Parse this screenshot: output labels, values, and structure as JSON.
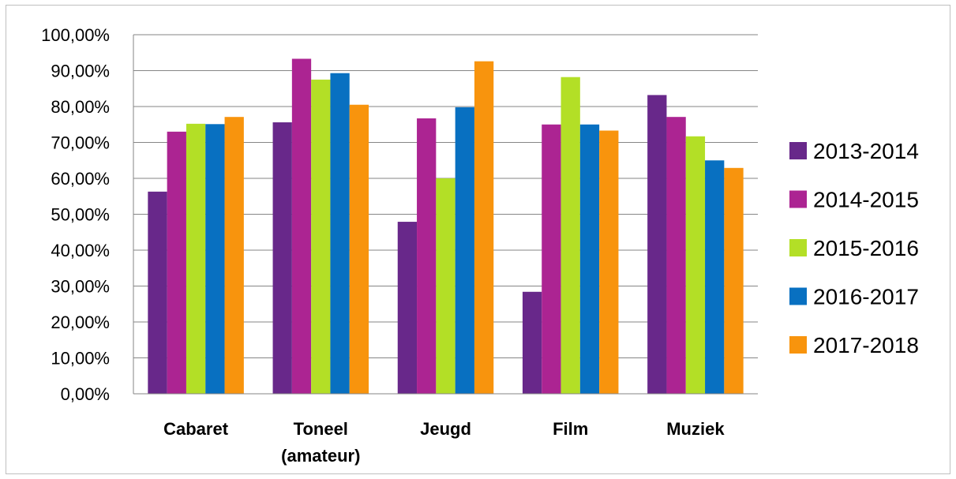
{
  "chart_data": {
    "type": "bar",
    "title": "",
    "xlabel": "",
    "ylabel": "",
    "categories": [
      "Cabaret",
      "Toneel\n(amateur)",
      "Jeugd",
      "Film",
      "Muziek"
    ],
    "series": [
      {
        "name": "2013-2014",
        "color": "#68288a",
        "values": [
          56.3,
          75.6,
          47.9,
          28.4,
          83.2
        ]
      },
      {
        "name": "2014-2015",
        "color": "#ac2492",
        "values": [
          73.0,
          93.3,
          76.7,
          75.0,
          77.1
        ]
      },
      {
        "name": "2015-2016",
        "color": "#b3df26",
        "values": [
          75.2,
          87.5,
          60.0,
          88.2,
          71.7
        ]
      },
      {
        "name": "2016-2017",
        "color": "#0870c1",
        "values": [
          75.1,
          89.3,
          79.8,
          75.0,
          65.0
        ]
      },
      {
        "name": "2017-2018",
        "color": "#f8940d",
        "values": [
          77.1,
          80.5,
          92.6,
          73.3,
          62.9
        ]
      }
    ],
    "ylim": [
      0,
      100
    ],
    "yticks": [
      "0,00%",
      "10,00%",
      "20,00%",
      "30,00%",
      "40,00%",
      "50,00%",
      "60,00%",
      "70,00%",
      "80,00%",
      "90,00%",
      "100,00%"
    ],
    "grid": true,
    "legend_position": "right"
  }
}
